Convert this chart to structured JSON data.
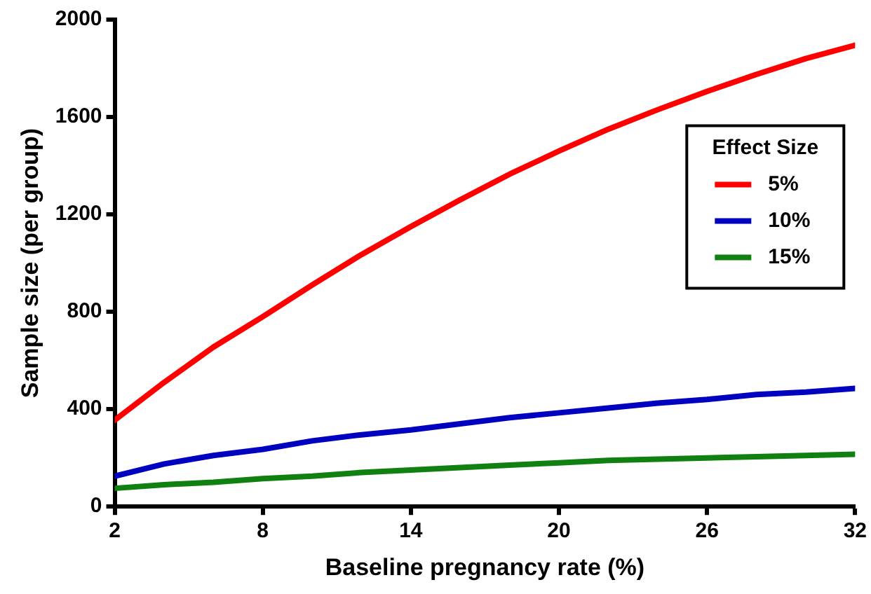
{
  "chart_data": {
    "type": "line",
    "xlabel": "Baseline pregnancy rate (%)",
    "ylabel": "Sample size (per group)",
    "legend_title": "Effect Size",
    "x": [
      2,
      4,
      6,
      8,
      10,
      12,
      14,
      16,
      18,
      20,
      22,
      24,
      26,
      28,
      30,
      32
    ],
    "series": [
      {
        "name": "5%",
        "color": "#ff0000",
        "values": [
          355,
          510,
          655,
          780,
          910,
          1035,
          1150,
          1260,
          1365,
          1460,
          1550,
          1630,
          1705,
          1775,
          1840,
          1895
        ]
      },
      {
        "name": "10%",
        "color": "#0000c0",
        "values": [
          125,
          175,
          210,
          235,
          270,
          295,
          315,
          340,
          365,
          385,
          405,
          425,
          440,
          460,
          470,
          485
        ]
      },
      {
        "name": "15%",
        "color": "#108010",
        "values": [
          75,
          90,
          100,
          115,
          125,
          140,
          150,
          160,
          170,
          180,
          190,
          195,
          200,
          205,
          210,
          215
        ]
      }
    ],
    "xlim": [
      2,
      32
    ],
    "xticks": [
      2,
      8,
      14,
      20,
      26,
      32
    ],
    "ylim": [
      0,
      2000
    ],
    "yticks": [
      0,
      400,
      800,
      1200,
      1600,
      2000
    ],
    "grid": false,
    "legend": "right",
    "marker": "none",
    "line_style": "solid"
  }
}
